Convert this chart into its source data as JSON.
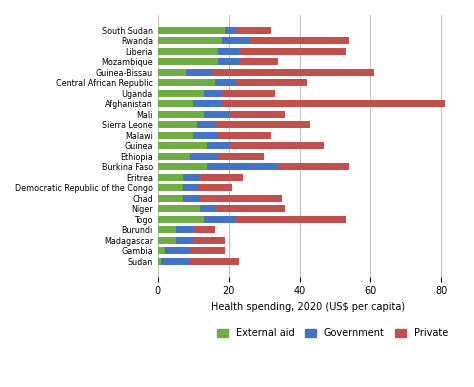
{
  "countries": [
    "South Sudan",
    "Rwanda",
    "Liberia",
    "Mozambique",
    "Guinea-Bissau",
    "Central African Republic",
    "Uganda",
    "Afghanistan",
    "Mali",
    "Sierra Leone",
    "Malawi",
    "Guinea",
    "Ethiopia",
    "Burkina Faso",
    "Eritrea",
    "Democratic Republic of the Congo",
    "Chad",
    "Niger",
    "Togo",
    "Burundi",
    "Madagascar",
    "Gambia",
    "Sudan"
  ],
  "external_aid": [
    19,
    18,
    17,
    17,
    8,
    16,
    13,
    10,
    13,
    11,
    10,
    14,
    9,
    14,
    7,
    7,
    7,
    12,
    13,
    5,
    5,
    2,
    1
  ],
  "government": [
    3,
    8,
    6,
    6,
    7,
    6,
    5,
    8,
    7,
    5,
    7,
    6,
    8,
    20,
    5,
    4,
    5,
    4,
    9,
    5,
    5,
    7,
    8
  ],
  "private": [
    10,
    28,
    30,
    11,
    46,
    20,
    15,
    63,
    16,
    27,
    15,
    27,
    13,
    20,
    12,
    10,
    23,
    20,
    31,
    6,
    9,
    10,
    14
  ],
  "colors": {
    "external_aid": "#70ad47",
    "government": "#4472c4",
    "private": "#c0504d"
  },
  "xlabel": "Health spending, 2020 (US$ per capita)",
  "xlim": [
    0,
    85
  ],
  "xticks": [
    0,
    20,
    40,
    60,
    80
  ],
  "legend_labels": [
    "External aid",
    "Government",
    "Private"
  ],
  "background_color": "#ffffff",
  "grid_color": "#c0c0c0"
}
